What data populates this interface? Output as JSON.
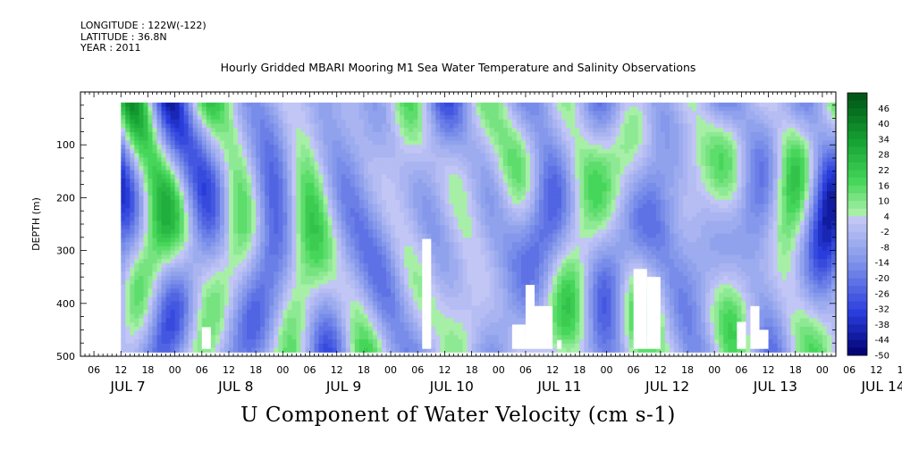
{
  "header": {
    "longitude": "LONGITUDE : 122W(-122)",
    "latitude": "LATITUDE : 36.8N",
    "year": "YEAR : 2011"
  },
  "chart_data": {
    "type": "heatmap",
    "title": "Hourly Gridded MBARI Mooring M1 Sea Water Temperature and Salinity Observations",
    "xlabel": "U Component of Water Velocity (cm s-1)",
    "ylabel": "DEPTH (m)",
    "y_ticks": [
      "100",
      "200",
      "300",
      "400",
      "500"
    ],
    "ylim": [
      500,
      0
    ],
    "y_data_range": [
      20,
      485
    ],
    "x_hour_labels": [
      "06",
      "12",
      "18",
      "00",
      "06",
      "12",
      "18",
      "00",
      "06",
      "12",
      "18",
      "00",
      "06",
      "12",
      "18",
      "00",
      "06",
      "12",
      "18",
      "00",
      "06",
      "12",
      "18",
      "00",
      "06",
      "12",
      "18",
      "00",
      "06",
      "12",
      "18",
      "00"
    ],
    "x_day_labels": [
      "JUL 7",
      "JUL 8",
      "JUL 9",
      "JUL 10",
      "JUL 11",
      "JUL 12",
      "JUL 13",
      "JUL 14"
    ],
    "x_range_hours": [
      "JUL 7 03:00",
      "JUL 14 03:00"
    ],
    "data_start": "JUL 7 12:00",
    "data_end": "JUL 14 03:00",
    "colorbar": {
      "labels": [
        "46",
        "40",
        "34",
        "28",
        "22",
        "16",
        "10",
        "4",
        "-2",
        "-8",
        "-14",
        "-20",
        "-26",
        "-32",
        "-38",
        "-44",
        "-50"
      ],
      "min": -50,
      "max": 52,
      "step": 3
    },
    "missing_data_gaps": [
      {
        "from": "JUL 8 06:00",
        "to": "JUL 8 08:00",
        "depth_top": 445
      },
      {
        "from": "JUL 10 07:00",
        "to": "JUL 10 09:00",
        "depth_top": 278
      },
      {
        "from": "JUL 11 03:00",
        "to": "JUL 11 06:00",
        "depth_top": 440
      },
      {
        "from": "JUL 11 06:00",
        "to": "JUL 11 08:00",
        "depth_top": 365
      },
      {
        "from": "JUL 11 08:00",
        "to": "JUL 11 12:00",
        "depth_top": 405
      },
      {
        "from": "JUL 11 13:00",
        "to": "JUL 11 14:00",
        "depth_top": 470
      },
      {
        "from": "JUL 12 06:00",
        "to": "JUL 12 09:00",
        "depth_top": 335
      },
      {
        "from": "JUL 12 09:00",
        "to": "JUL 12 12:00",
        "depth_top": 350
      },
      {
        "from": "JUL 13 05:00",
        "to": "JUL 13 07:00",
        "depth_top": 435
      },
      {
        "from": "JUL 13 08:00",
        "to": "JUL 13 10:00",
        "depth_top": 405
      },
      {
        "from": "JUL 13 10:00",
        "to": "JUL 13 12:00",
        "depth_top": 450
      }
    ]
  }
}
